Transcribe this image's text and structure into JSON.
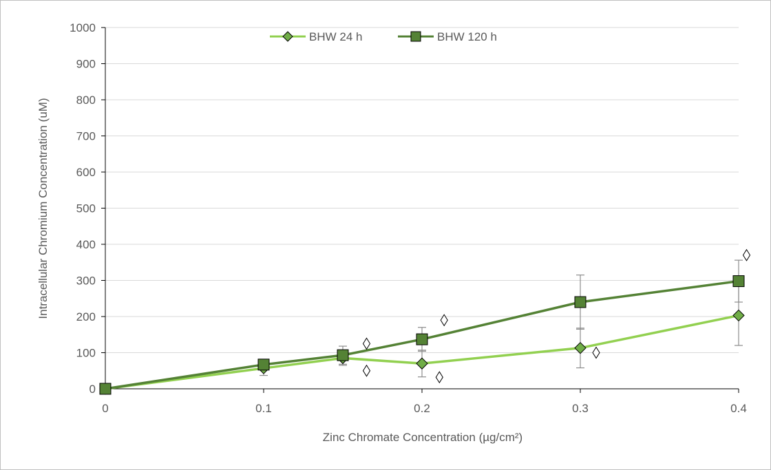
{
  "chart_data": {
    "type": "line",
    "x": [
      0,
      0.1,
      0.15,
      0.2,
      0.3,
      0.4
    ],
    "x_ticks": [
      "0",
      "0.1",
      "0.2",
      "0.3",
      "0.4"
    ],
    "x_tick_values": [
      0,
      0.1,
      0.2,
      0.3,
      0.4
    ],
    "y_ticks": [
      "0",
      "100",
      "200",
      "300",
      "400",
      "500",
      "600",
      "700",
      "800",
      "900",
      "1000"
    ],
    "y_tick_values": [
      0,
      100,
      200,
      300,
      400,
      500,
      600,
      700,
      800,
      900,
      1000
    ],
    "xlim": [
      0,
      0.4
    ],
    "ylim": [
      0,
      1000
    ],
    "xlabel": "Zinc Chromate Concentration (µg/cm²)",
    "ylabel": "Intracellular Chromium Concentration (uM)",
    "grid": "horizontal",
    "legend_position": "top",
    "series": [
      {
        "name": "BHW 24 h",
        "marker": "diamond",
        "color": "#92d050",
        "marker_fill": "#70ad47",
        "values": [
          0,
          57,
          85,
          70,
          113,
          203
        ],
        "error": [
          0,
          20,
          20,
          37,
          55,
          83
        ]
      },
      {
        "name": "BHW 120 h",
        "marker": "square",
        "color": "#548235",
        "marker_fill": "#548235",
        "values": [
          0,
          67,
          93,
          137,
          240,
          298
        ],
        "error": [
          0,
          8,
          25,
          33,
          75,
          58
        ]
      }
    ],
    "significance_markers": [
      {
        "symbol": "diamond-outline",
        "x": 0.165,
        "y": 125
      },
      {
        "symbol": "diamond-outline",
        "x": 0.165,
        "y": 50
      },
      {
        "symbol": "diamond-outline",
        "x": 0.214,
        "y": 190
      },
      {
        "symbol": "diamond-outline",
        "x": 0.211,
        "y": 32
      },
      {
        "symbol": "diamond-outline",
        "x": 0.31,
        "y": 100
      },
      {
        "symbol": "diamond-outline",
        "x": 0.405,
        "y": 370
      }
    ]
  }
}
